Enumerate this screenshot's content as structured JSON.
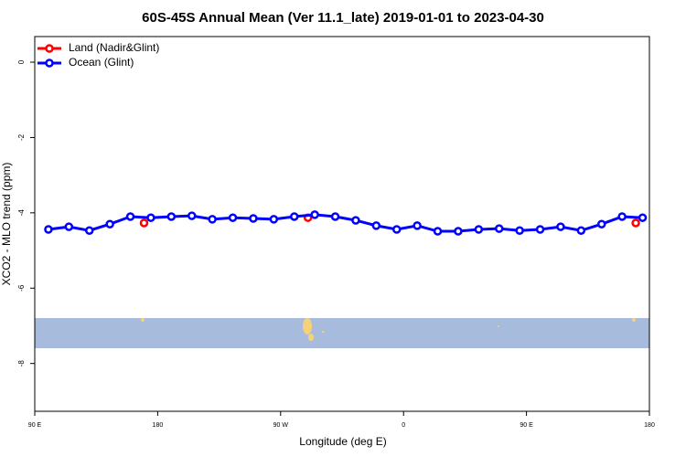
{
  "chart_data": {
    "type": "line",
    "title": "60S-45S Annual Mean (Ver 11.1_late)   2019-01-01 to 2023-04-30",
    "xlabel": "Longitude (deg E)",
    "ylabel": "XCO2 - MLO trend (ppm)",
    "xlim": [
      90,
      540
    ],
    "xticks": [
      {
        "value": 90,
        "label": "90 E"
      },
      {
        "value": 180,
        "label": "180"
      },
      {
        "value": 270,
        "label": "90 W"
      },
      {
        "value": 360,
        "label": "0"
      },
      {
        "value": 450,
        "label": "90 E"
      },
      {
        "value": 540,
        "label": "180"
      }
    ],
    "ylim": [
      -9.27,
      0.68
    ],
    "yticks": [
      0,
      -2,
      -4,
      -6,
      -8
    ],
    "legend": "top-left",
    "series": [
      {
        "name": "Land (Nadir&Glint)",
        "color": "#ff0000",
        "line": false,
        "x": [
          170,
          290,
          530
        ],
        "values": [
          -4.27,
          -4.13,
          -4.27
        ]
      },
      {
        "name": "Ocean (Glint)",
        "color": "#0000ff",
        "line": true,
        "x": [
          100,
          115,
          130,
          145,
          160,
          175,
          190,
          205,
          220,
          235,
          250,
          265,
          280,
          295,
          310,
          325,
          340,
          355,
          370,
          385,
          400,
          415,
          430,
          445,
          460,
          475,
          490,
          505,
          520,
          535
        ],
        "values": [
          -4.44,
          -4.37,
          -4.47,
          -4.3,
          -4.1,
          -4.13,
          -4.1,
          -4.08,
          -4.17,
          -4.13,
          -4.15,
          -4.17,
          -4.1,
          -4.05,
          -4.1,
          -4.2,
          -4.34,
          -4.44,
          -4.34,
          -4.49,
          -4.49,
          -4.44,
          -4.42,
          -4.47,
          -4.44,
          -4.37,
          -4.47,
          -4.3,
          -4.1,
          -4.13
        ]
      }
    ]
  }
}
